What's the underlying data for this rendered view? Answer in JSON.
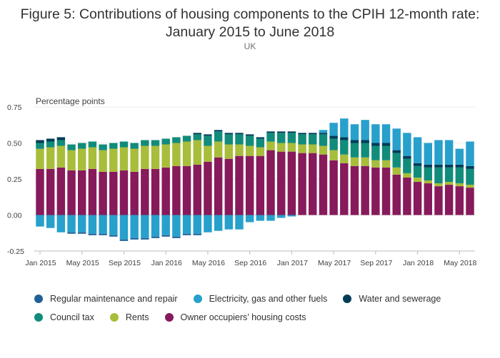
{
  "title_line1": "Figure 5: Contributions of housing components to the CPIH 12-month rate:",
  "title_line2": "January 2015 to June 2018",
  "subtitle": "UK",
  "chart_data": {
    "type": "bar",
    "stacked": true,
    "ylabel": "Percentage points",
    "ylim": [
      -0.25,
      0.75
    ],
    "yticks": [
      "0.75",
      "0.50",
      "0.25",
      "0.00",
      "-0.25"
    ],
    "ytick_values": [
      0.75,
      0.5,
      0.25,
      0.0,
      -0.25
    ],
    "x_tick_labels": [
      {
        "index": 0,
        "label": "Jan 2015"
      },
      {
        "index": 4,
        "label": "May 2015"
      },
      {
        "index": 8,
        "label": "Sep 2015"
      },
      {
        "index": 12,
        "label": "Jan 2016"
      },
      {
        "index": 16,
        "label": "May 2016"
      },
      {
        "index": 20,
        "label": "Sep 2016"
      },
      {
        "index": 24,
        "label": "Jan 2017"
      },
      {
        "index": 28,
        "label": "May 2017"
      },
      {
        "index": 32,
        "label": "Sep 2017"
      },
      {
        "index": 36,
        "label": "Jan 2018"
      },
      {
        "index": 40,
        "label": "May 2018"
      }
    ],
    "categories": [
      "Jan 2015",
      "Feb 2015",
      "Mar 2015",
      "Apr 2015",
      "May 2015",
      "Jun 2015",
      "Jul 2015",
      "Aug 2015",
      "Sep 2015",
      "Oct 2015",
      "Nov 2015",
      "Dec 2015",
      "Jan 2016",
      "Feb 2016",
      "Mar 2016",
      "Apr 2016",
      "May 2016",
      "Jun 2016",
      "Jul 2016",
      "Aug 2016",
      "Sep 2016",
      "Oct 2016",
      "Nov 2016",
      "Dec 2016",
      "Jan 2017",
      "Feb 2017",
      "Mar 2017",
      "Apr 2017",
      "May 2017",
      "Jun 2017",
      "Jul 2017",
      "Aug 2017",
      "Sep 2017",
      "Oct 2017",
      "Nov 2017",
      "Dec 2017",
      "Jan 2018",
      "Feb 2018",
      "Mar 2018",
      "Apr 2018",
      "May 2018",
      "Jun 2018"
    ],
    "grid": true,
    "legend_position": "bottom",
    "series": [
      {
        "name": "Owner occupiers’ housing costs",
        "color": "#871a5b",
        "values": [
          0.32,
          0.32,
          0.33,
          0.31,
          0.31,
          0.32,
          0.3,
          0.3,
          0.31,
          0.3,
          0.32,
          0.32,
          0.33,
          0.34,
          0.34,
          0.35,
          0.37,
          0.4,
          0.39,
          0.41,
          0.41,
          0.41,
          0.45,
          0.44,
          0.44,
          0.43,
          0.43,
          0.42,
          0.38,
          0.36,
          0.34,
          0.34,
          0.33,
          0.33,
          0.28,
          0.26,
          0.23,
          0.22,
          0.2,
          0.21,
          0.2,
          0.19
        ]
      },
      {
        "name": "Rents",
        "color": "#a8bd3a",
        "values": [
          0.14,
          0.15,
          0.15,
          0.14,
          0.15,
          0.15,
          0.15,
          0.16,
          0.16,
          0.16,
          0.16,
          0.16,
          0.16,
          0.16,
          0.17,
          0.17,
          0.11,
          0.11,
          0.1,
          0.08,
          0.07,
          0.06,
          0.06,
          0.06,
          0.06,
          0.06,
          0.06,
          0.06,
          0.07,
          0.06,
          0.06,
          0.06,
          0.05,
          0.05,
          0.05,
          0.03,
          0.03,
          0.02,
          0.02,
          0.02,
          0.02,
          0.02
        ]
      },
      {
        "name": "Council tax",
        "color": "#118c7b",
        "values": [
          0.04,
          0.04,
          0.04,
          0.04,
          0.04,
          0.04,
          0.04,
          0.04,
          0.04,
          0.04,
          0.04,
          0.04,
          0.04,
          0.04,
          0.04,
          0.04,
          0.07,
          0.07,
          0.07,
          0.07,
          0.07,
          0.06,
          0.06,
          0.07,
          0.07,
          0.07,
          0.07,
          0.08,
          0.08,
          0.1,
          0.1,
          0.1,
          0.1,
          0.1,
          0.1,
          0.1,
          0.08,
          0.09,
          0.11,
          0.1,
          0.11,
          0.11
        ]
      },
      {
        "name": "Water and sewerage",
        "color": "#003c57",
        "values": [
          0.02,
          0.02,
          0.02,
          0.0,
          0.0,
          0.0,
          0.0,
          0.0,
          0.0,
          0.0,
          0.0,
          0.0,
          0.0,
          0.0,
          0.0,
          0.01,
          0.01,
          0.01,
          0.01,
          0.01,
          0.01,
          0.01,
          0.01,
          0.01,
          0.01,
          0.01,
          0.01,
          0.01,
          0.02,
          0.02,
          0.02,
          0.02,
          0.02,
          0.02,
          0.02,
          0.02,
          0.02,
          0.02,
          0.02,
          0.02,
          0.02,
          0.02
        ]
      },
      {
        "name": "Electricity, gas and other fuels",
        "color": "#27a0cc",
        "values": [
          -0.08,
          -0.09,
          -0.12,
          -0.12,
          -0.12,
          -0.13,
          -0.13,
          -0.14,
          -0.17,
          -0.16,
          -0.16,
          -0.15,
          -0.14,
          -0.15,
          -0.13,
          -0.13,
          -0.12,
          -0.11,
          -0.1,
          -0.1,
          -0.05,
          -0.04,
          -0.04,
          -0.02,
          -0.01,
          0.0,
          0.0,
          0.02,
          0.09,
          0.13,
          0.11,
          0.14,
          0.13,
          0.13,
          0.15,
          0.16,
          0.18,
          0.15,
          0.17,
          0.17,
          0.11,
          0.17
        ]
      },
      {
        "name": "Regular maintenance and repair",
        "color": "#206095",
        "values": [
          0.0,
          0.0,
          0.0,
          -0.01,
          -0.01,
          -0.01,
          -0.01,
          -0.01,
          -0.01,
          -0.01,
          -0.01,
          -0.01,
          -0.01,
          -0.01,
          -0.01,
          -0.01,
          0.0,
          0.0,
          0.0,
          0.0,
          0.0,
          0.0,
          0.0,
          0.0,
          0.0,
          0.0,
          0.0,
          0.0,
          0.0,
          0.0,
          0.0,
          0.0,
          0.0,
          0.0,
          0.0,
          0.0,
          0.0,
          0.0,
          0.0,
          0.0,
          0.0,
          0.0
        ]
      }
    ]
  },
  "legend": {
    "row1": [
      {
        "label": "Regular maintenance and repair",
        "color": "#206095"
      },
      {
        "label": "Electricity, gas and other fuels",
        "color": "#27a0cc"
      },
      {
        "label": "Water and sewerage",
        "color": "#003c57"
      }
    ],
    "row2": [
      {
        "label": "Council tax",
        "color": "#118c7b"
      },
      {
        "label": "Rents",
        "color": "#a8bd3a"
      },
      {
        "label": "Owner occupiers’ housing costs",
        "color": "#871a5b"
      }
    ]
  }
}
